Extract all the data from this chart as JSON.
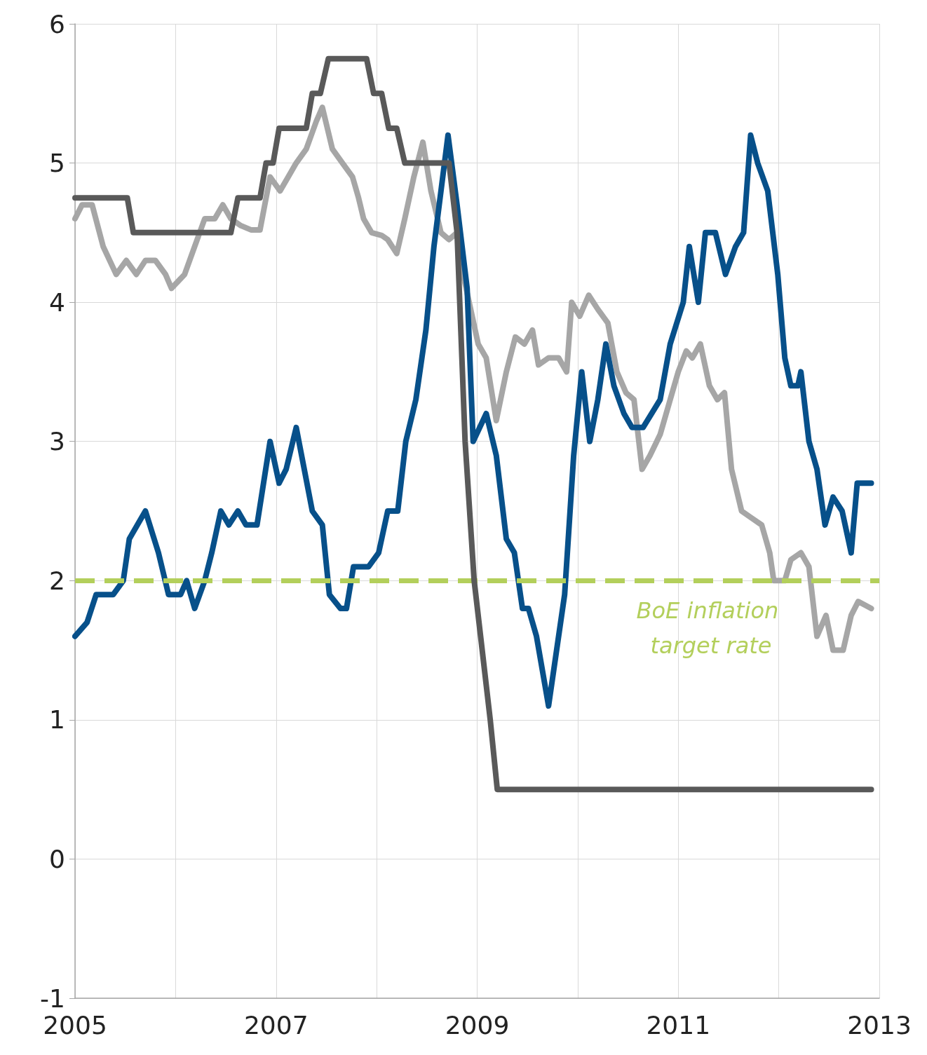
{
  "chart_data": {
    "type": "line",
    "xlim": [
      2005,
      2013
    ],
    "xticks": [
      2005,
      {
        "value": 2006,
        "label": null
      },
      2007,
      {
        "value": 2008,
        "label": null
      },
      2009,
      {
        "value": 2010,
        "label": null
      },
      2011,
      {
        "value": 2012,
        "label": null
      },
      2013
    ],
    "ylim": [
      -1,
      6
    ],
    "yticks": [
      -1,
      0,
      1,
      2,
      3,
      4,
      5,
      6
    ],
    "grid": true,
    "marker": "none",
    "line_style": "solid",
    "series": [
      {
        "color": "#a6a6a6",
        "x": [
          2005.0,
          2005.07,
          2005.17,
          2005.28,
          2005.41,
          2005.51,
          2005.61,
          2005.7,
          2005.8,
          2005.9,
          2005.96,
          2006.09,
          2006.19,
          2006.29,
          2006.39,
          2006.47,
          2006.55,
          2006.65,
          2006.75,
          2006.84,
          2006.94,
          2007.04,
          2007.12,
          2007.2,
          2007.3,
          2007.4,
          2007.46,
          2007.56,
          2007.66,
          2007.76,
          2007.82,
          2007.87,
          2007.95,
          2008.05,
          2008.11,
          2008.2,
          2008.28,
          2008.37,
          2008.46,
          2008.54,
          2008.64,
          2008.72,
          2008.8,
          2008.86,
          2009.01,
          2009.09,
          2009.19,
          2009.29,
          2009.38,
          2009.47,
          2009.55,
          2009.61,
          2009.71,
          2009.81,
          2009.89,
          2009.94,
          2010.02,
          2010.11,
          2010.2,
          2010.3,
          2010.39,
          2010.48,
          2010.56,
          2010.64,
          2010.72,
          2010.82,
          2010.92,
          2011.0,
          2011.08,
          2011.14,
          2011.22,
          2011.31,
          2011.39,
          2011.46,
          2011.53,
          2011.63,
          2011.73,
          2011.83,
          2011.91,
          2011.95,
          2012.06,
          2012.12,
          2012.22,
          2012.3,
          2012.38,
          2012.47,
          2012.54,
          2012.64,
          2012.72,
          2012.79,
          2012.92
        ],
        "values": [
          4.6,
          4.7,
          4.7,
          4.4,
          4.2,
          4.3,
          4.2,
          4.3,
          4.3,
          4.2,
          4.1,
          4.2,
          4.4,
          4.6,
          4.6,
          4.7,
          4.6,
          4.55,
          4.52,
          4.52,
          4.9,
          4.8,
          4.9,
          5.0,
          5.1,
          5.3,
          5.4,
          5.1,
          5.0,
          4.9,
          4.75,
          4.6,
          4.5,
          4.48,
          4.45,
          4.35,
          4.6,
          4.9,
          5.15,
          4.8,
          4.5,
          4.45,
          4.5,
          4.2,
          3.7,
          3.6,
          3.15,
          3.5,
          3.75,
          3.7,
          3.8,
          3.55,
          3.6,
          3.6,
          3.5,
          4.0,
          3.9,
          4.05,
          3.95,
          3.85,
          3.5,
          3.35,
          3.3,
          2.8,
          2.9,
          3.05,
          3.3,
          3.5,
          3.65,
          3.6,
          3.7,
          3.4,
          3.3,
          3.35,
          2.8,
          2.5,
          2.45,
          2.4,
          2.2,
          2.0,
          2.0,
          2.15,
          2.2,
          2.1,
          1.6,
          1.75,
          1.5,
          1.5,
          1.75,
          1.85,
          1.8
        ]
      },
      {
        "color": "#07508a",
        "x": [
          2005.0,
          2005.12,
          2005.21,
          2005.38,
          2005.48,
          2005.54,
          2005.7,
          2005.83,
          2005.93,
          2006.05,
          2006.11,
          2006.19,
          2006.29,
          2006.36,
          2006.45,
          2006.53,
          2006.62,
          2006.7,
          2006.81,
          2006.94,
          2007.03,
          2007.1,
          2007.2,
          2007.36,
          2007.46,
          2007.53,
          2007.64,
          2007.7,
          2007.77,
          2007.92,
          2008.02,
          2008.11,
          2008.21,
          2008.29,
          2008.39,
          2008.49,
          2008.57,
          2008.64,
          2008.71,
          2008.8,
          2008.9,
          2008.96,
          2009.09,
          2009.19,
          2009.29,
          2009.37,
          2009.45,
          2009.51,
          2009.59,
          2009.71,
          2009.79,
          2009.87,
          2009.96,
          2010.04,
          2010.12,
          2010.2,
          2010.28,
          2010.36,
          2010.46,
          2010.54,
          2010.65,
          2010.82,
          2010.92,
          2011.05,
          2011.11,
          2011.2,
          2011.27,
          2011.37,
          2011.47,
          2011.57,
          2011.65,
          2011.72,
          2011.79,
          2011.89,
          2011.99,
          2012.06,
          2012.12,
          2012.19,
          2012.22,
          2012.3,
          2012.38,
          2012.46,
          2012.54,
          2012.63,
          2012.72,
          2012.78,
          2012.92
        ],
        "values": [
          1.6,
          1.7,
          1.9,
          1.9,
          2.0,
          2.3,
          2.5,
          2.2,
          1.9,
          1.9,
          2.0,
          1.8,
          2.0,
          2.2,
          2.5,
          2.4,
          2.5,
          2.4,
          2.4,
          3.0,
          2.7,
          2.8,
          3.1,
          2.5,
          2.4,
          1.9,
          1.8,
          1.8,
          2.1,
          2.1,
          2.2,
          2.5,
          2.5,
          3.0,
          3.3,
          3.8,
          4.4,
          4.8,
          5.2,
          4.7,
          4.1,
          3.0,
          3.2,
          2.9,
          2.3,
          2.2,
          1.8,
          1.8,
          1.6,
          1.1,
          1.5,
          1.9,
          2.9,
          3.5,
          3.0,
          3.3,
          3.7,
          3.4,
          3.2,
          3.1,
          3.1,
          3.3,
          3.7,
          4.0,
          4.4,
          4.0,
          4.5,
          4.5,
          4.2,
          4.4,
          4.5,
          5.2,
          5.0,
          4.8,
          4.2,
          3.6,
          3.4,
          3.4,
          3.5,
          3.0,
          2.8,
          2.4,
          2.6,
          2.5,
          2.2,
          2.7,
          2.7
        ]
      },
      {
        "color": "#595959",
        "x": [
          2005.0,
          2005.52,
          2005.58,
          2006.55,
          2006.62,
          2006.84,
          2006.9,
          2006.97,
          2007.03,
          2007.3,
          2007.36,
          2007.44,
          2007.52,
          2007.9,
          2007.97,
          2008.05,
          2008.12,
          2008.2,
          2008.28,
          2008.72,
          2008.8,
          2008.88,
          2008.97,
          2009.05,
          2009.13,
          2009.2,
          2012.92
        ],
        "values": [
          4.75,
          4.75,
          4.5,
          4.5,
          4.75,
          4.75,
          5.0,
          5.0,
          5.25,
          5.25,
          5.5,
          5.5,
          5.75,
          5.75,
          5.5,
          5.5,
          5.25,
          5.25,
          5.0,
          5.0,
          4.5,
          3.0,
          2.0,
          1.5,
          1.0,
          0.5,
          0.5
        ]
      }
    ],
    "ref_lines": [
      {
        "axis": "y",
        "value": 2,
        "color": "#b3cf5b",
        "line_style": "dashed"
      }
    ],
    "annotations": [
      "BoE inflation target rate"
    ]
  }
}
